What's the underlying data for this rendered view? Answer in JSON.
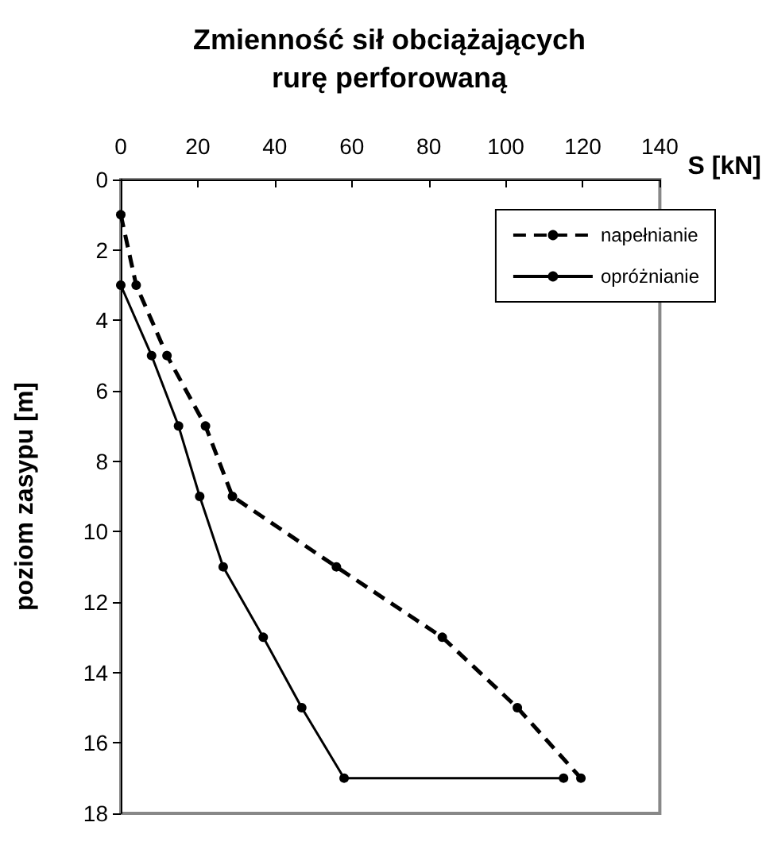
{
  "chart_data": {
    "type": "line",
    "title": "Zmienność sił obciążających\nrurę perforowaną",
    "xlabel": "S [kN]",
    "ylabel": "poziom zasypu [m]",
    "xlim": [
      0,
      140
    ],
    "xticks": [
      0,
      20,
      40,
      60,
      80,
      100,
      120,
      140
    ],
    "ylim": [
      18,
      0
    ],
    "yticks": [
      0,
      2,
      4,
      6,
      8,
      10,
      12,
      14,
      16,
      18
    ],
    "grid": false,
    "legend": "top right",
    "marker": "circle",
    "series": [
      {
        "name": "napełnianie",
        "color": "#000000",
        "line_style": "dashed",
        "x": [
          0,
          4,
          12,
          22,
          29,
          56,
          83.5,
          103,
          119.5
        ],
        "values": [
          1,
          3,
          5,
          7,
          9,
          11,
          13,
          15,
          17
        ]
      },
      {
        "name": "opróżnianie",
        "color": "#000000",
        "line_style": "solid",
        "x": [
          0,
          8,
          15,
          20.5,
          26.6,
          37,
          47,
          58,
          115
        ],
        "values": [
          3,
          5,
          7,
          9,
          11,
          13,
          15,
          17,
          17
        ]
      }
    ]
  }
}
